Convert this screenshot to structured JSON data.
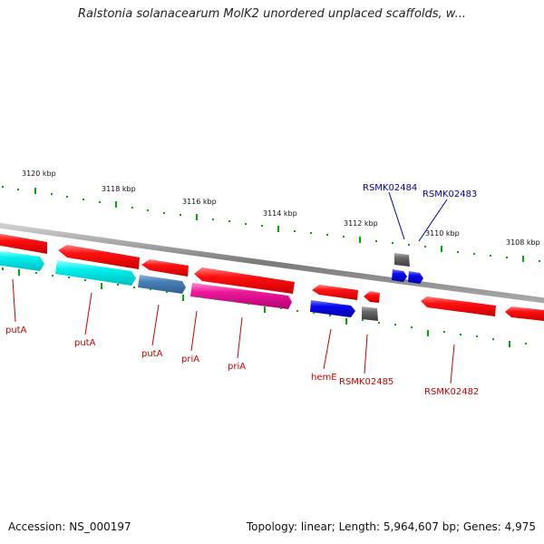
{
  "title": "Ralstonia solanacearum MolK2 unordered unplaced scaffolds, w...",
  "footer": {
    "accession": "Accession: NS_000197",
    "topology": "Topology: linear; Length: 5,964,607 bp; Genes: 4,975"
  },
  "colors": {
    "red": "#ee0000",
    "cyan": "#00eeee",
    "steelblue": "#4a80b8",
    "magenta": "#ee1199",
    "blue": "#0000ee",
    "gray": "#666666",
    "tick_green": "#00aa00",
    "label_red": "#cc0000",
    "label_blue": "#0000aa"
  },
  "scale_labels": [
    "3120 kbp",
    "3118 kbp",
    "3116 kbp",
    "3114 kbp",
    "3112 kbp",
    "3110 kbp",
    "3108 kbp"
  ],
  "genes": [
    {
      "name": "putA",
      "color": "red",
      "strand": "reverse"
    },
    {
      "name": "putA",
      "color": "cyan",
      "strand": "forward"
    },
    {
      "name": "putA",
      "color": "steelblue",
      "strand": "forward"
    },
    {
      "name": "priA",
      "color": "magenta",
      "strand": "forward"
    },
    {
      "name": "priA",
      "color": "red",
      "strand": "reverse"
    },
    {
      "name": "hemE",
      "color": "blue",
      "strand": "forward"
    },
    {
      "name": "RSMK02485",
      "color": "gray",
      "strand": "forward"
    },
    {
      "name": "RSMK02484",
      "color": "gray",
      "strand": "forward"
    },
    {
      "name": "RSMK02483",
      "color": "blue",
      "strand": "forward"
    },
    {
      "name": "RSMK02482",
      "color": "red",
      "strand": "reverse"
    }
  ],
  "gene_labels": {
    "putA_1": "putA",
    "putA_2": "putA",
    "putA_3": "putA",
    "priA_1": "priA",
    "priA_2": "priA",
    "hemE": "hemE",
    "RSMK02485": "RSMK02485",
    "RSMK02484": "RSMK02484",
    "RSMK02483": "RSMK02483",
    "RSMK02482": "RSMK02482"
  }
}
